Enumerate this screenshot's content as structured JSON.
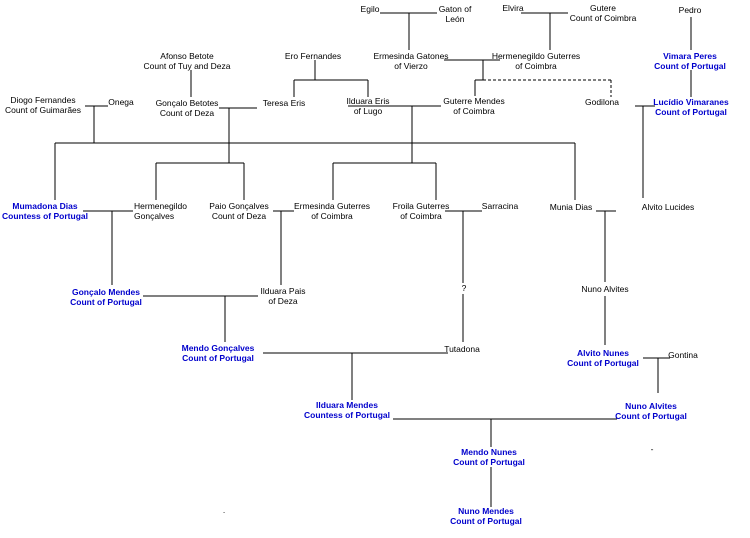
{
  "people": {
    "egilo": {
      "name": "Egilo",
      "title": ""
    },
    "gaton": {
      "name": "Gaton of",
      "title": "León"
    },
    "elvira": {
      "name": "Elvira",
      "title": ""
    },
    "gutere": {
      "name": "Gutere",
      "title": "Count of Coimbra"
    },
    "pedro": {
      "name": "Pedro",
      "title": ""
    },
    "afonso_betote": {
      "name": "Afonso Betote",
      "title": "Count of Tuy and Deza"
    },
    "ero_fernandes": {
      "name": "Ero Fernandes",
      "title": ""
    },
    "ermesinda_gatones": {
      "name": "Ermesinda Gatones",
      "title": "of Vierzo"
    },
    "hermenegildo_guterres": {
      "name": "Hermenegildo Guterres",
      "title": "of Coimbra"
    },
    "vimara_peres": {
      "name": "Vimara Peres",
      "title": "Count of Portugal"
    },
    "diogo_fernandes": {
      "name": "Diogo Fernandes",
      "title": "Count of Guimarães"
    },
    "onega": {
      "name": "Onega",
      "title": ""
    },
    "goncalo_betotes": {
      "name": "Gonçalo Betotes",
      "title": "Count of Deza"
    },
    "teresa_eris": {
      "name": "Teresa Eris",
      "title": ""
    },
    "ilduara_eris": {
      "name": "Ilduara Eris",
      "title": "of Lugo"
    },
    "guterre_mendes": {
      "name": "Guterre Mendes",
      "title": "of Coimbra"
    },
    "godilona": {
      "name": "Godilona",
      "title": ""
    },
    "lucidio_vimaranes": {
      "name": "Lucídio Vimaranes",
      "title": "Count of Portugal"
    },
    "mumadona_dias": {
      "name": "Mumadona Dias",
      "title": "Countess of Portugal"
    },
    "hermenegildo_goncalves": {
      "name": "Hermenegildo",
      "title": "Gonçalves"
    },
    "paio_goncalves": {
      "name": "Paio Gonçalves",
      "title": "Count of Deza"
    },
    "ermesinda_guterres": {
      "name": "Ermesinda Guterres",
      "title": "of Coimbra"
    },
    "froila_guterres": {
      "name": "Froila Guterres",
      "title": "of Coimbra"
    },
    "sarracina": {
      "name": "Sarracina",
      "title": ""
    },
    "munia_dias": {
      "name": "Munia Dias",
      "title": ""
    },
    "alvito_lucides": {
      "name": "Alvito Lucides",
      "title": ""
    },
    "goncalo_mendes": {
      "name": "Gonçalo Mendes",
      "title": "Count of Portugal"
    },
    "ilduara_pais": {
      "name": "Ilduara Pais",
      "title": "of Deza"
    },
    "unknown": {
      "name": "?",
      "title": ""
    },
    "nuno_alvites_1": {
      "name": "Nuno Alvites",
      "title": ""
    },
    "mendo_goncalves": {
      "name": "Mendo Gonçalves",
      "title": "Count of Portugal"
    },
    "tutadona": {
      "name": "Tutadona",
      "title": ""
    },
    "alvito_nunes": {
      "name": "Alvito Nunes",
      "title": "Count of Portugal"
    },
    "gontina": {
      "name": "Gontina",
      "title": ""
    },
    "ilduara_mendes": {
      "name": "Ilduara Mendes",
      "title": "Countess of Portugal"
    },
    "nuno_alvites_2": {
      "name": "Nuno Alvites",
      "title": "Count of Portugal"
    },
    "mendo_nunes": {
      "name": "Mendo Nunes",
      "title": "Count of Portugal"
    },
    "nuno_mendes": {
      "name": "Nuno Mendes",
      "title": "Count of Portugal"
    }
  },
  "marks": {
    "dash": "-",
    "dot": "."
  },
  "colors": {
    "count_of_portugal": "#0000cc",
    "other": "#000000",
    "lines": "#000000"
  }
}
